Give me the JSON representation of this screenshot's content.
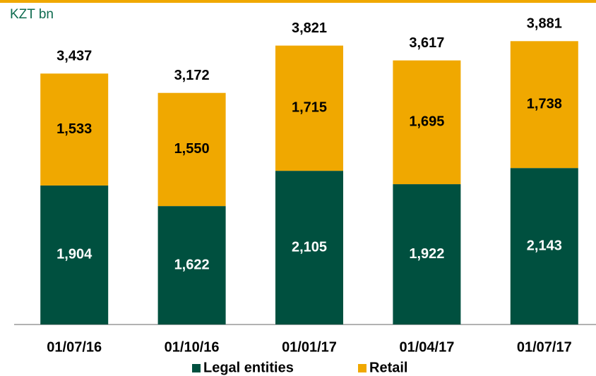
{
  "chart_data": {
    "type": "stacked_bar",
    "unit_label": "KZT bn",
    "categories": [
      "01/07/16",
      "01/10/16",
      "01/01/17",
      "01/04/17",
      "01/07/17"
    ],
    "series": [
      {
        "name": "Legal entities",
        "color": "#00503f",
        "label_color": "#ffffff",
        "values": [
          1904,
          1622,
          2105,
          1922,
          2143
        ],
        "value_labels": [
          "1,904",
          "1,622",
          "2,105",
          "1,922",
          "2,143"
        ]
      },
      {
        "name": "Retail",
        "color": "#f0a800",
        "label_color": "#000000",
        "values": [
          1533,
          1550,
          1715,
          1695,
          1738
        ],
        "value_labels": [
          "1,533",
          "1,550",
          "1,715",
          "1,695",
          "1,738"
        ]
      }
    ],
    "totals": [
      3437,
      3172,
      3821,
      3617,
      3881
    ],
    "total_labels": [
      "3,437",
      "3,172",
      "3,821",
      "3,617",
      "3,881"
    ],
    "ylim": [
      0,
      4000
    ],
    "legend": "bottom"
  }
}
